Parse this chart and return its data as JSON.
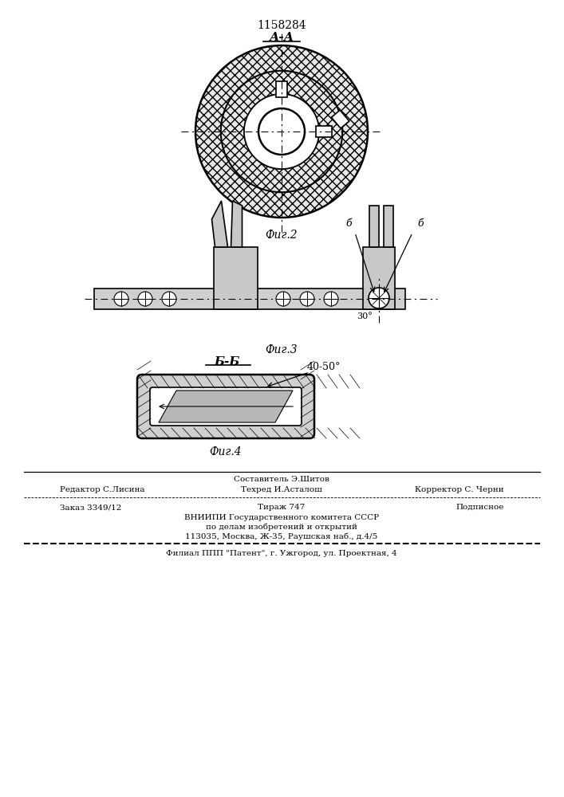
{
  "patent_number": "1158284",
  "fig1_label": "А-А",
  "fig2_caption": "Фиг.2",
  "fig3_caption": "Фиг.3",
  "fig4_caption": "Фиг.4",
  "fig4_label": "Б-Б",
  "section_label_b": "б",
  "angle_label": "30°",
  "angle_label2": "40-50°",
  "footer_line1": "Составитель Э.Шитов",
  "footer_line2_left": "Редактор С.Лисина",
  "footer_line2_mid": "Техред И.Асталош",
  "footer_line2_right": "Корректор С. Черни",
  "footer_line3_left": "Заказ 3349/12",
  "footer_line3_mid": "Тираж 747",
  "footer_line3_right": "Подписное",
  "footer_line4": "ВНИИПИ Государственного комитета СССР",
  "footer_line5": "по делам изобретений и открытий",
  "footer_line6": "113035, Москва, Ж-35, Раушская наб., д.4/5",
  "footer_line7": "Филиал ППП \"Патент\", г. Ужгород, ул. Проектная, 4",
  "bg_color": "#ffffff",
  "line_color": "#000000",
  "hatch_color": "#000000",
  "fill_light": "#e8e8e8",
  "fill_med": "#d0d0d0",
  "fill_dark": "#c8c8c8"
}
